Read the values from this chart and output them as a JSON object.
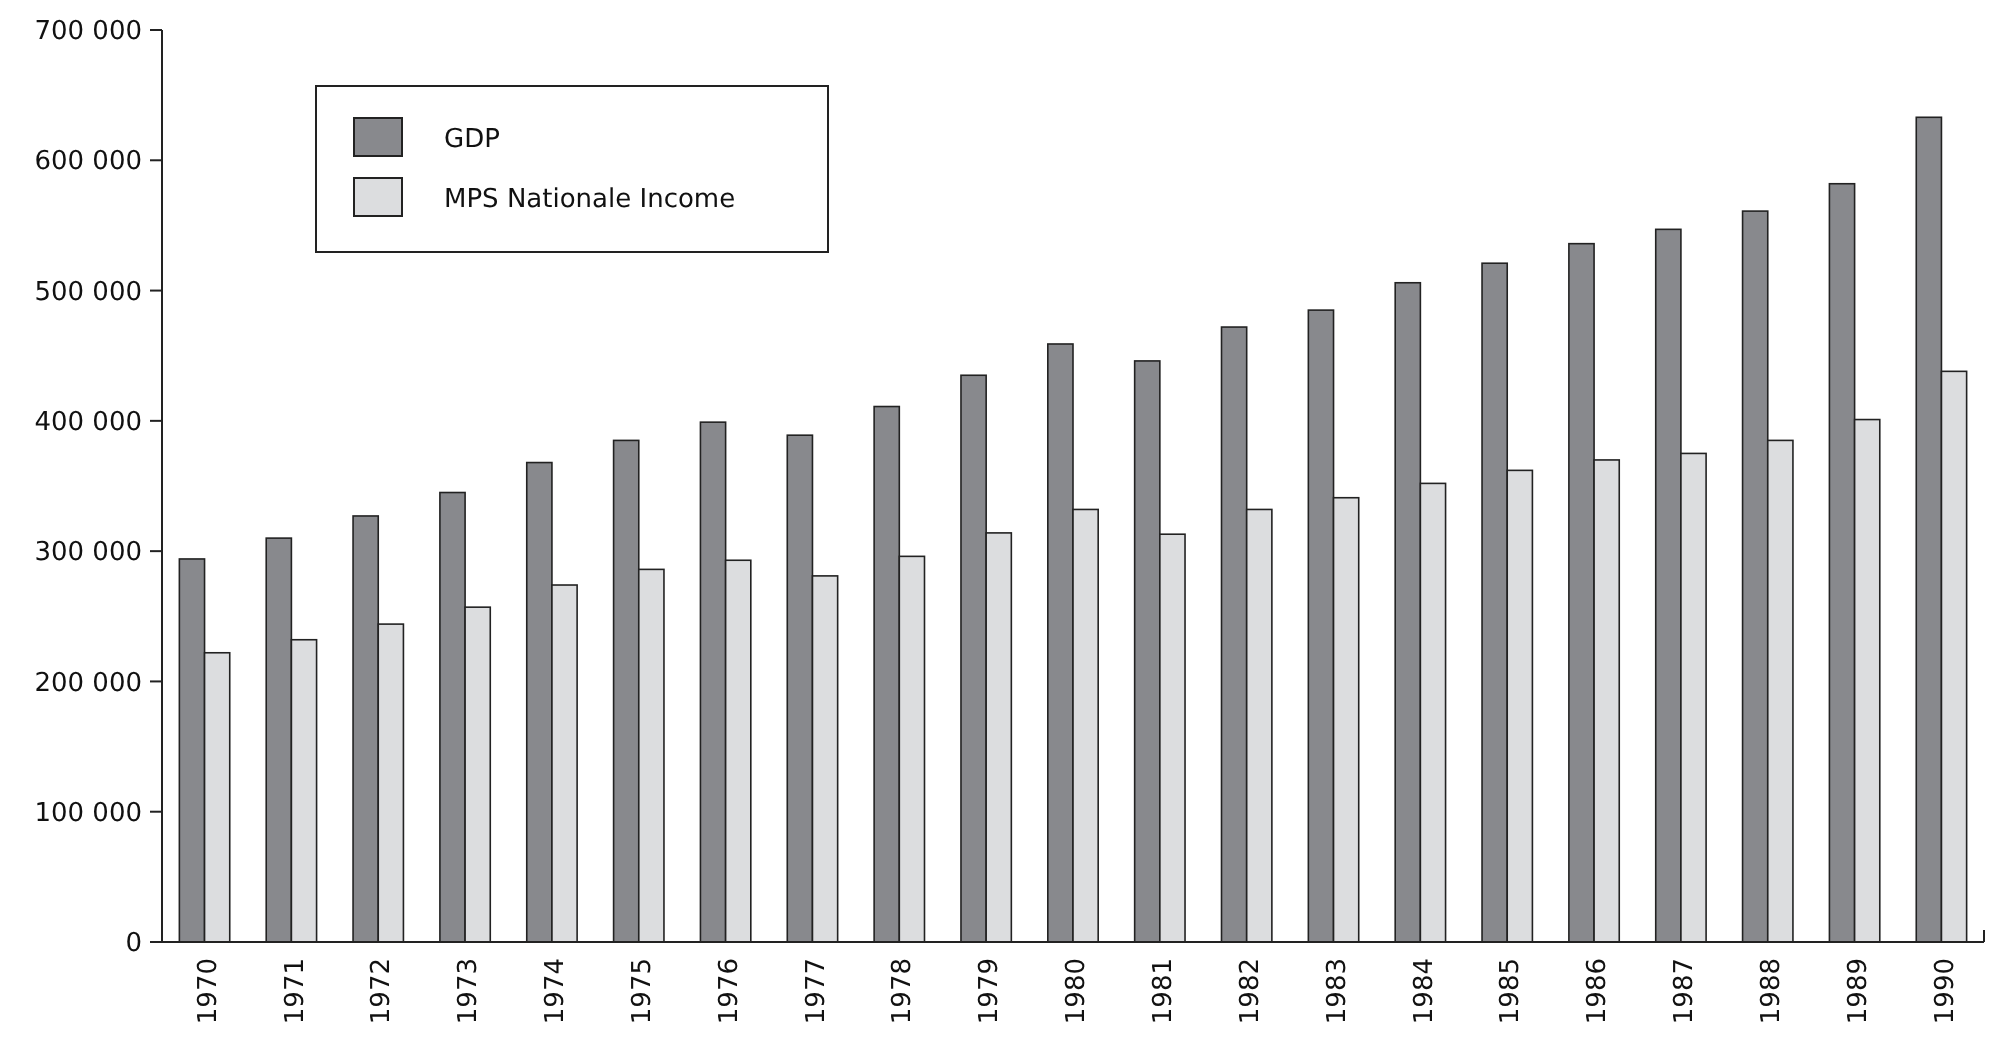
{
  "chart_data": {
    "type": "bar",
    "categories": [
      "1970",
      "1971",
      "1972",
      "1973",
      "1974",
      "1975",
      "1976",
      "1977",
      "1978",
      "1979",
      "1980",
      "1981",
      "1982",
      "1983",
      "1984",
      "1985",
      "1986",
      "1987",
      "1988",
      "1989",
      "1990"
    ],
    "series": [
      {
        "name": "GDP",
        "color": "#88898d",
        "values": [
          294000,
          310000,
          327000,
          345000,
          368000,
          385000,
          399000,
          389000,
          411000,
          435000,
          459000,
          446000,
          472000,
          485000,
          506000,
          521000,
          536000,
          547000,
          561000,
          582000,
          633000
        ]
      },
      {
        "name": "MPS Nationale Income",
        "color": "#dcdddf",
        "values": [
          222000,
          232000,
          244000,
          257000,
          274000,
          286000,
          293000,
          281000,
          296000,
          314000,
          332000,
          313000,
          332000,
          341000,
          352000,
          362000,
          370000,
          375000,
          385000,
          401000,
          438000
        ]
      }
    ],
    "ylim": [
      0,
      700000
    ],
    "yticks": [
      0,
      {
        "value": 100000,
        "label": "100 000"
      },
      {
        "value": 200000,
        "label": "200 000"
      },
      {
        "value": 300000,
        "label": "300 000"
      },
      {
        "value": 400000,
        "label": "400 000"
      },
      {
        "value": 500000,
        "label": "500 000"
      },
      {
        "value": 600000,
        "label": "600 000"
      },
      {
        "value": 700000,
        "label": "700 000"
      }
    ],
    "grid": false,
    "legend": "top left"
  }
}
